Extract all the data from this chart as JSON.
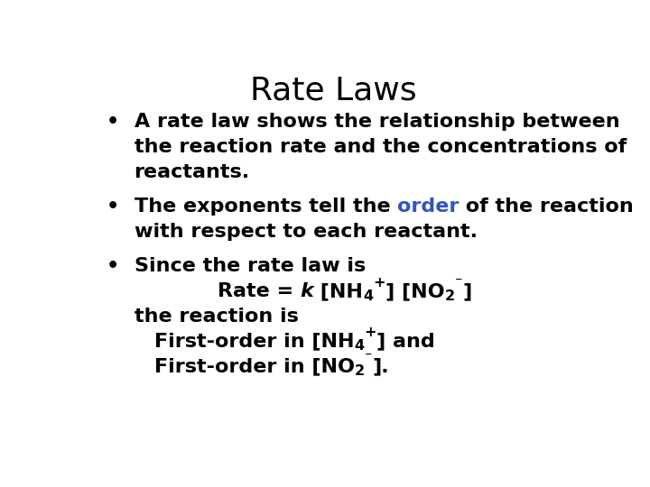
{
  "title": "Rate Laws",
  "title_fontsize": 26,
  "bg_color": "#ffffff",
  "text_color": "#000000",
  "highlight_color": "#3355bb",
  "body_fontsize": 16,
  "bullet1_lines": [
    "A rate law shows the relationship between",
    "the reaction rate and the concentrations of",
    "reactants."
  ],
  "bullet2_line1_before": "The exponents tell the ",
  "bullet2_highlight": "order",
  "bullet2_line1_after": " of the reaction",
  "bullet2_line2": "with respect to each reactant.",
  "bullet3_line1": "Since the rate law is",
  "after_formula": "the reaction is",
  "indent_line1": "First-order in [NH",
  "indent_line1b": "] and",
  "indent_line2": "First-order in [NO",
  "indent_line2b": "]."
}
